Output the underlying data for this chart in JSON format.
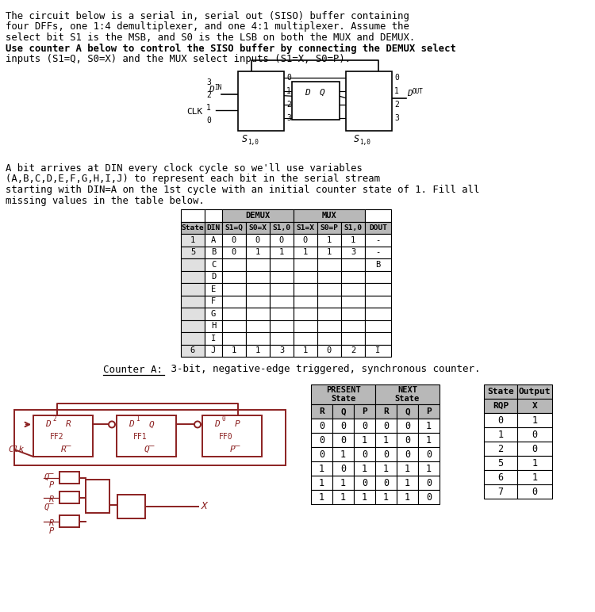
{
  "title_lines": [
    "The circuit below is a serial in, serial out (SISO) buffer containing",
    "four DFFs, one 1:4 demultiplexer, and one 4:1 multiplexer. Assume the",
    "select bit S1 is the MSB, and S0 is the LSB on both the MUX and DEMUX.",
    "Use counter A below to control the SISO buffer by connecting the DEMUX select",
    "inputs (S1=Q, S0=X) and the MUX select inputs (S1=X, S0=P)."
  ],
  "title_bold": [
    false,
    false,
    false,
    true,
    false
  ],
  "body_lines": [
    "A bit arrives at DIN every clock cycle so we'll use variables",
    "(A,B,C,D,E,F,G,H,I,J) to represent each bit in the serial stream",
    "starting with DIN=A on the 1st cycle with an initial counter state of 1. Fill all",
    "missing values in the table below."
  ],
  "counter_text": "Counter A:",
  "counter_rest": " 3-bit, negative-edge triggered, synchronous counter.",
  "main_table_rows": [
    [
      "1",
      "A",
      "0",
      "0",
      "0",
      "0",
      "1",
      "1",
      "-"
    ],
    [
      "5",
      "B",
      "0",
      "1",
      "1",
      "1",
      "1",
      "3",
      "-"
    ],
    [
      "",
      "C",
      "",
      "",
      "",
      "",
      "",
      "",
      "B"
    ],
    [
      "",
      "D",
      "",
      "",
      "",
      "",
      "",
      "",
      ""
    ],
    [
      "",
      "E",
      "",
      "",
      "",
      "",
      "",
      "",
      ""
    ],
    [
      "",
      "F",
      "",
      "",
      "",
      "",
      "",
      "",
      ""
    ],
    [
      "",
      "G",
      "",
      "",
      "",
      "",
      "",
      "",
      ""
    ],
    [
      "",
      "H",
      "",
      "",
      "",
      "",
      "",
      "",
      ""
    ],
    [
      "",
      "I",
      "",
      "",
      "",
      "",
      "",
      "",
      ""
    ],
    [
      "6",
      "J",
      "1",
      "1",
      "3",
      "1",
      "0",
      "2",
      "I"
    ]
  ],
  "transition_rows": [
    [
      "0",
      "0",
      "0",
      "0",
      "0",
      "1"
    ],
    [
      "0",
      "0",
      "1",
      "1",
      "0",
      "1"
    ],
    [
      "0",
      "1",
      "0",
      "0",
      "0",
      "0"
    ],
    [
      "1",
      "0",
      "1",
      "1",
      "1",
      "1"
    ],
    [
      "1",
      "1",
      "0",
      "0",
      "1",
      "0"
    ],
    [
      "1",
      "1",
      "1",
      "1",
      "1",
      "0"
    ]
  ],
  "state_rows": [
    [
      "0",
      "1"
    ],
    [
      "1",
      "0"
    ],
    [
      "2",
      "0"
    ],
    [
      "5",
      "1"
    ],
    [
      "6",
      "1"
    ],
    [
      "7",
      "0"
    ]
  ],
  "hdr_color": "#b8b8b8",
  "shaded_color": "#e0e0e0",
  "ff_color": "#8B2020",
  "bg": "#ffffff"
}
